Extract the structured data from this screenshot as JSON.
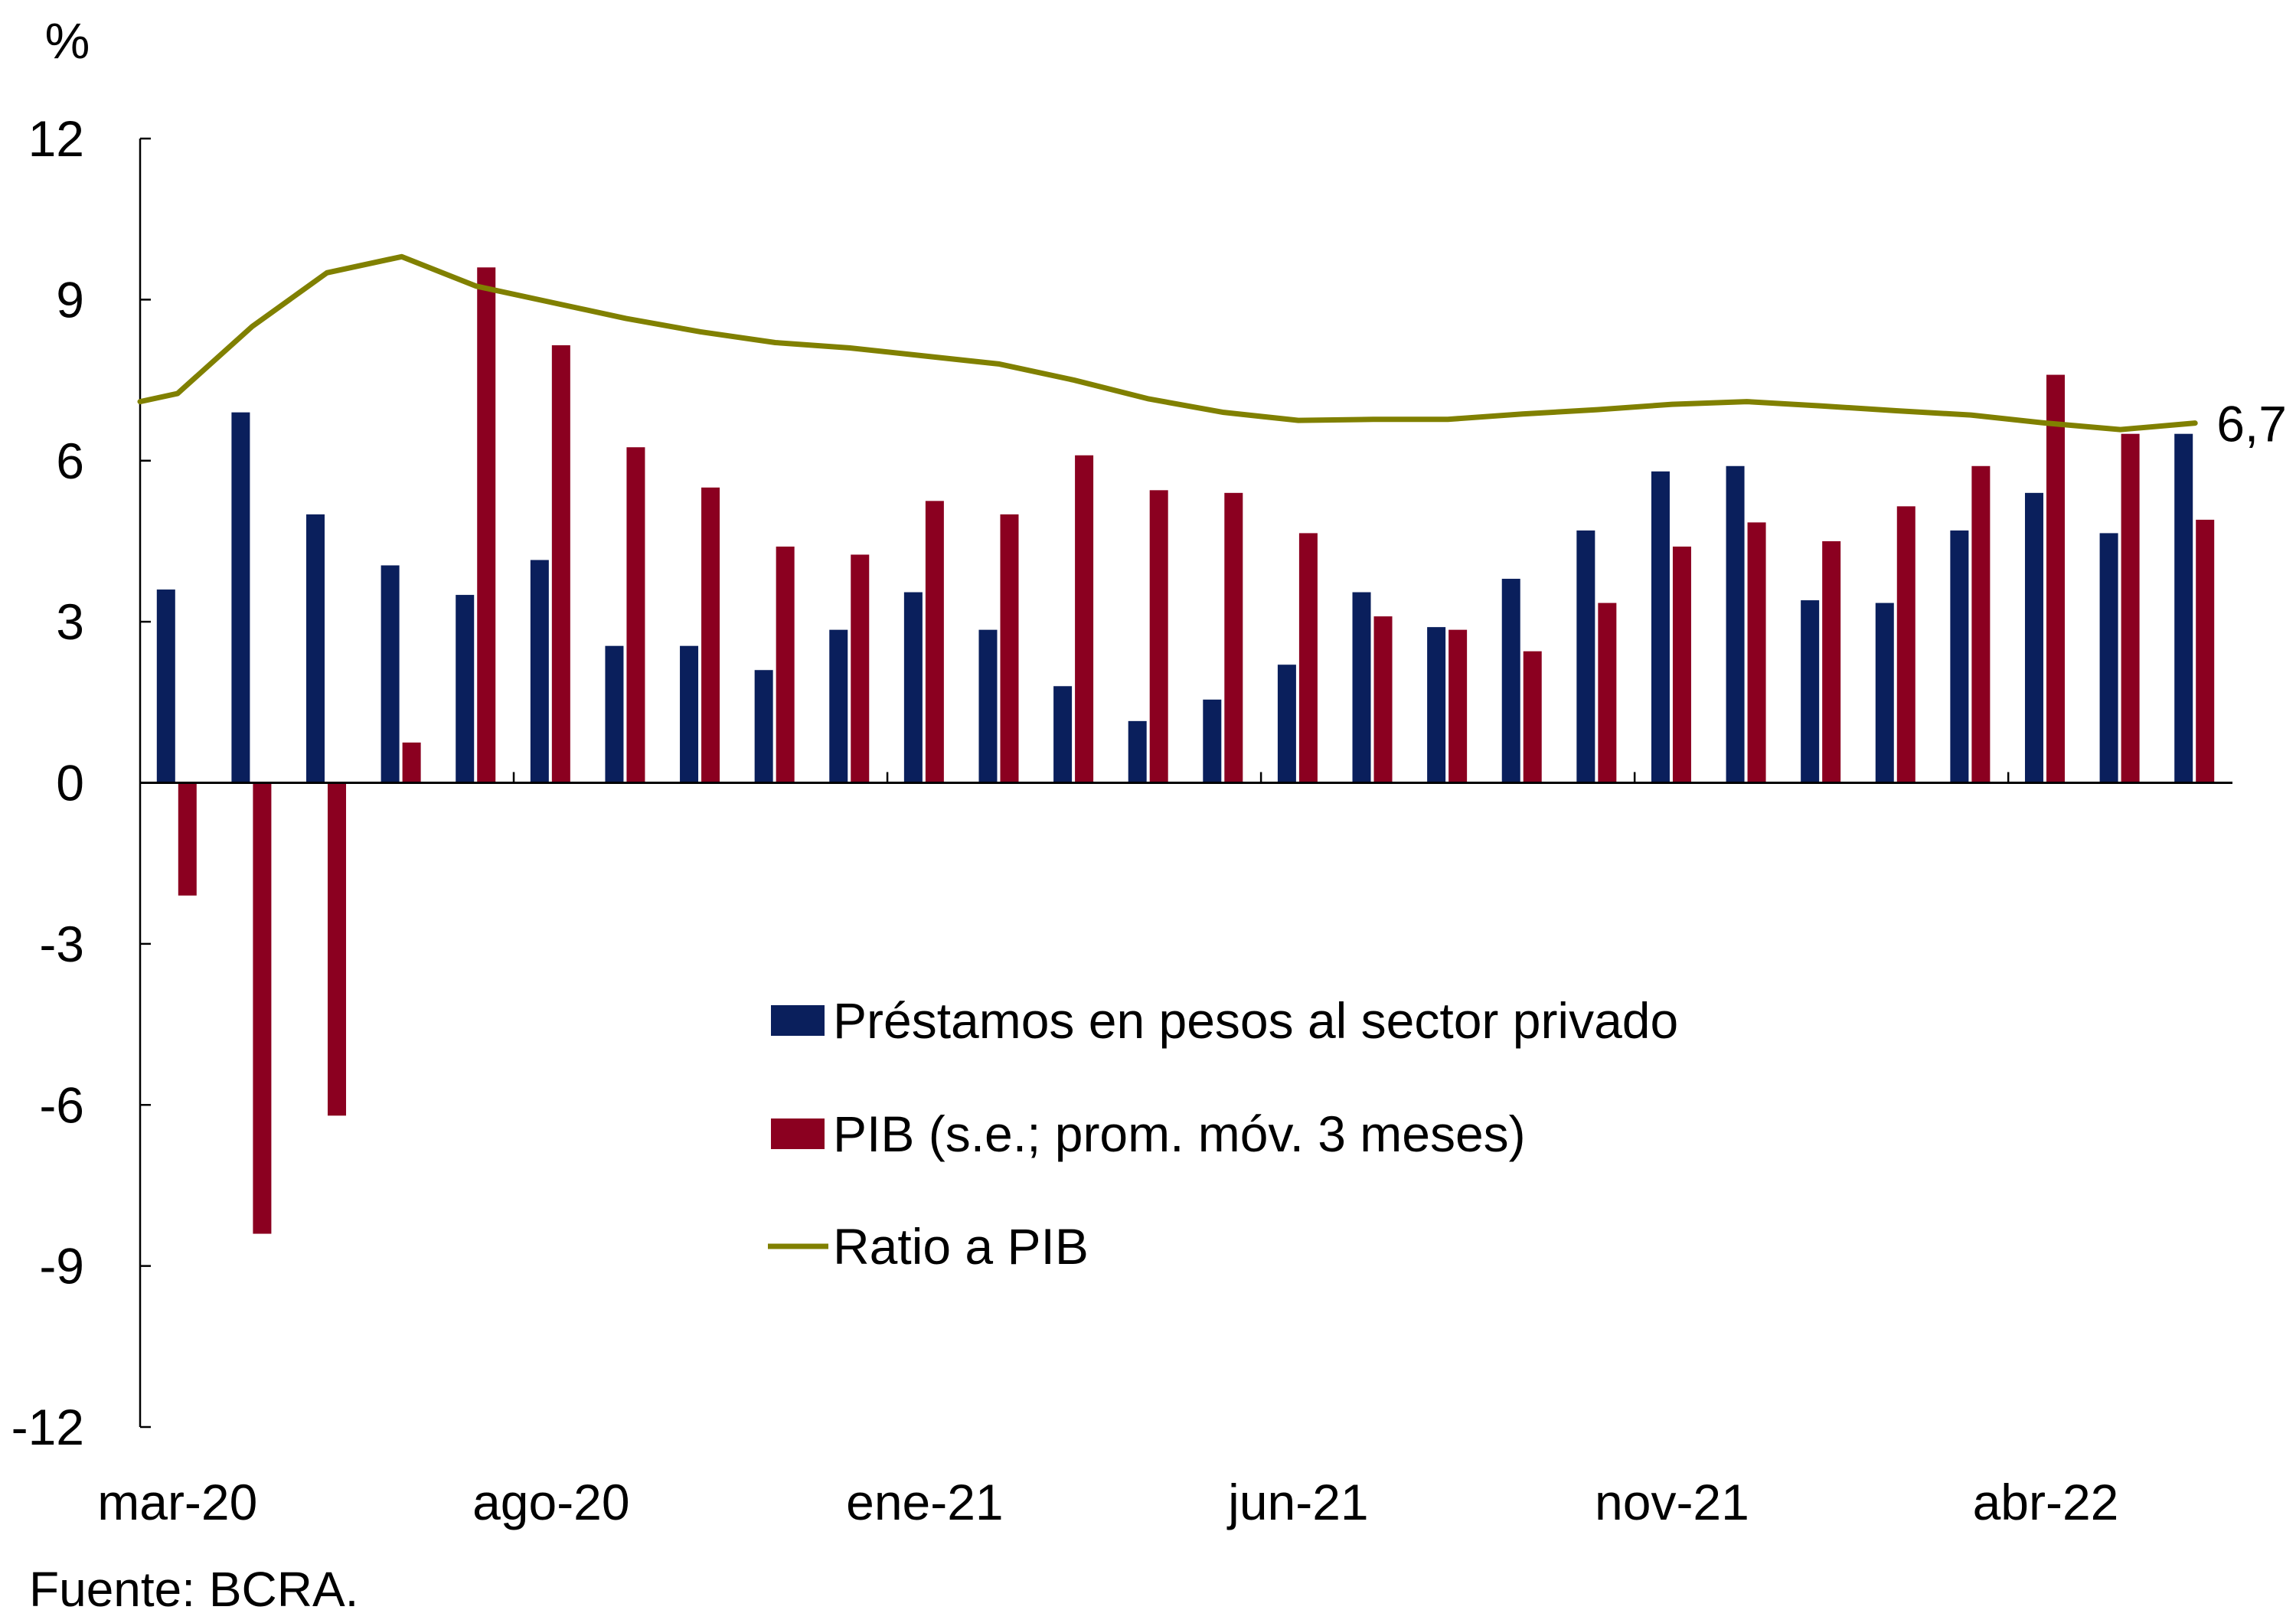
{
  "chart_data": {
    "type": "bar",
    "unit_label": "%",
    "source": "Fuente: BCRA.",
    "ylim": [
      -12,
      12
    ],
    "yticks": [
      12,
      9,
      6,
      3,
      0,
      -3,
      -6,
      -9,
      -12
    ],
    "ytick_labels": [
      "12",
      "9",
      "6",
      "3",
      "0",
      "-3",
      "-6",
      "-9",
      "-12"
    ],
    "grid": false,
    "legend_position": "center",
    "categories": [
      "mar-20",
      "abr-20",
      "may-20",
      "jun-20",
      "jul-20",
      "ago-20",
      "sep-20",
      "oct-20",
      "nov-20",
      "dic-20",
      "ene-21",
      "feb-21",
      "mar-21",
      "abr-21",
      "may-21",
      "jun-21",
      "jul-21",
      "ago-21",
      "sep-21",
      "oct-21",
      "nov-21",
      "dic-21",
      "ene-22",
      "feb-22",
      "mar-22",
      "abr-22",
      "may-22",
      "jun-22"
    ],
    "xtick_labels": [
      {
        "index": 0,
        "label": "mar-20"
      },
      {
        "index": 5,
        "label": "ago-20"
      },
      {
        "index": 10,
        "label": "ene-21"
      },
      {
        "index": 15,
        "label": "jun-21"
      },
      {
        "index": 20,
        "label": "nov-21"
      },
      {
        "index": 25,
        "label": "abr-22"
      }
    ],
    "series": [
      {
        "name": "Préstamos en pesos al sector privado",
        "type": "bar",
        "color": "#0a1f5c",
        "values": [
          3.6,
          6.9,
          5.0,
          4.05,
          3.5,
          4.15,
          2.55,
          2.55,
          2.1,
          2.85,
          3.55,
          2.85,
          1.8,
          1.15,
          1.55,
          2.2,
          3.55,
          2.9,
          3.8,
          4.7,
          5.8,
          5.9,
          3.4,
          3.35,
          4.7,
          5.4,
          4.65,
          6.5
        ]
      },
      {
        "name": "PIB (s.e.; prom. móv. 3 meses)",
        "type": "bar",
        "color": "#8b0020",
        "values": [
          -2.1,
          -8.4,
          -6.2,
          0.75,
          9.6,
          8.15,
          6.25,
          5.5,
          4.4,
          4.25,
          5.25,
          5.0,
          6.1,
          5.45,
          5.4,
          4.65,
          3.1,
          2.85,
          2.45,
          3.35,
          4.4,
          4.85,
          4.5,
          5.15,
          5.9,
          7.6,
          6.5,
          4.9
        ]
      },
      {
        "name": "Ratio a PIB",
        "type": "line",
        "color": "#808000",
        "values_from_axis_start": [
          7.1,
          7.25,
          8.5,
          9.5,
          9.8,
          9.25,
          8.95,
          8.65,
          8.4,
          8.2,
          8.1,
          7.95,
          7.8,
          7.5,
          7.15,
          6.9,
          6.75,
          6.77,
          6.77,
          6.87,
          6.95,
          7.05,
          7.1,
          7.02,
          6.93,
          6.85,
          6.7,
          6.58,
          6.7
        ],
        "end_label": "6,7"
      }
    ]
  }
}
